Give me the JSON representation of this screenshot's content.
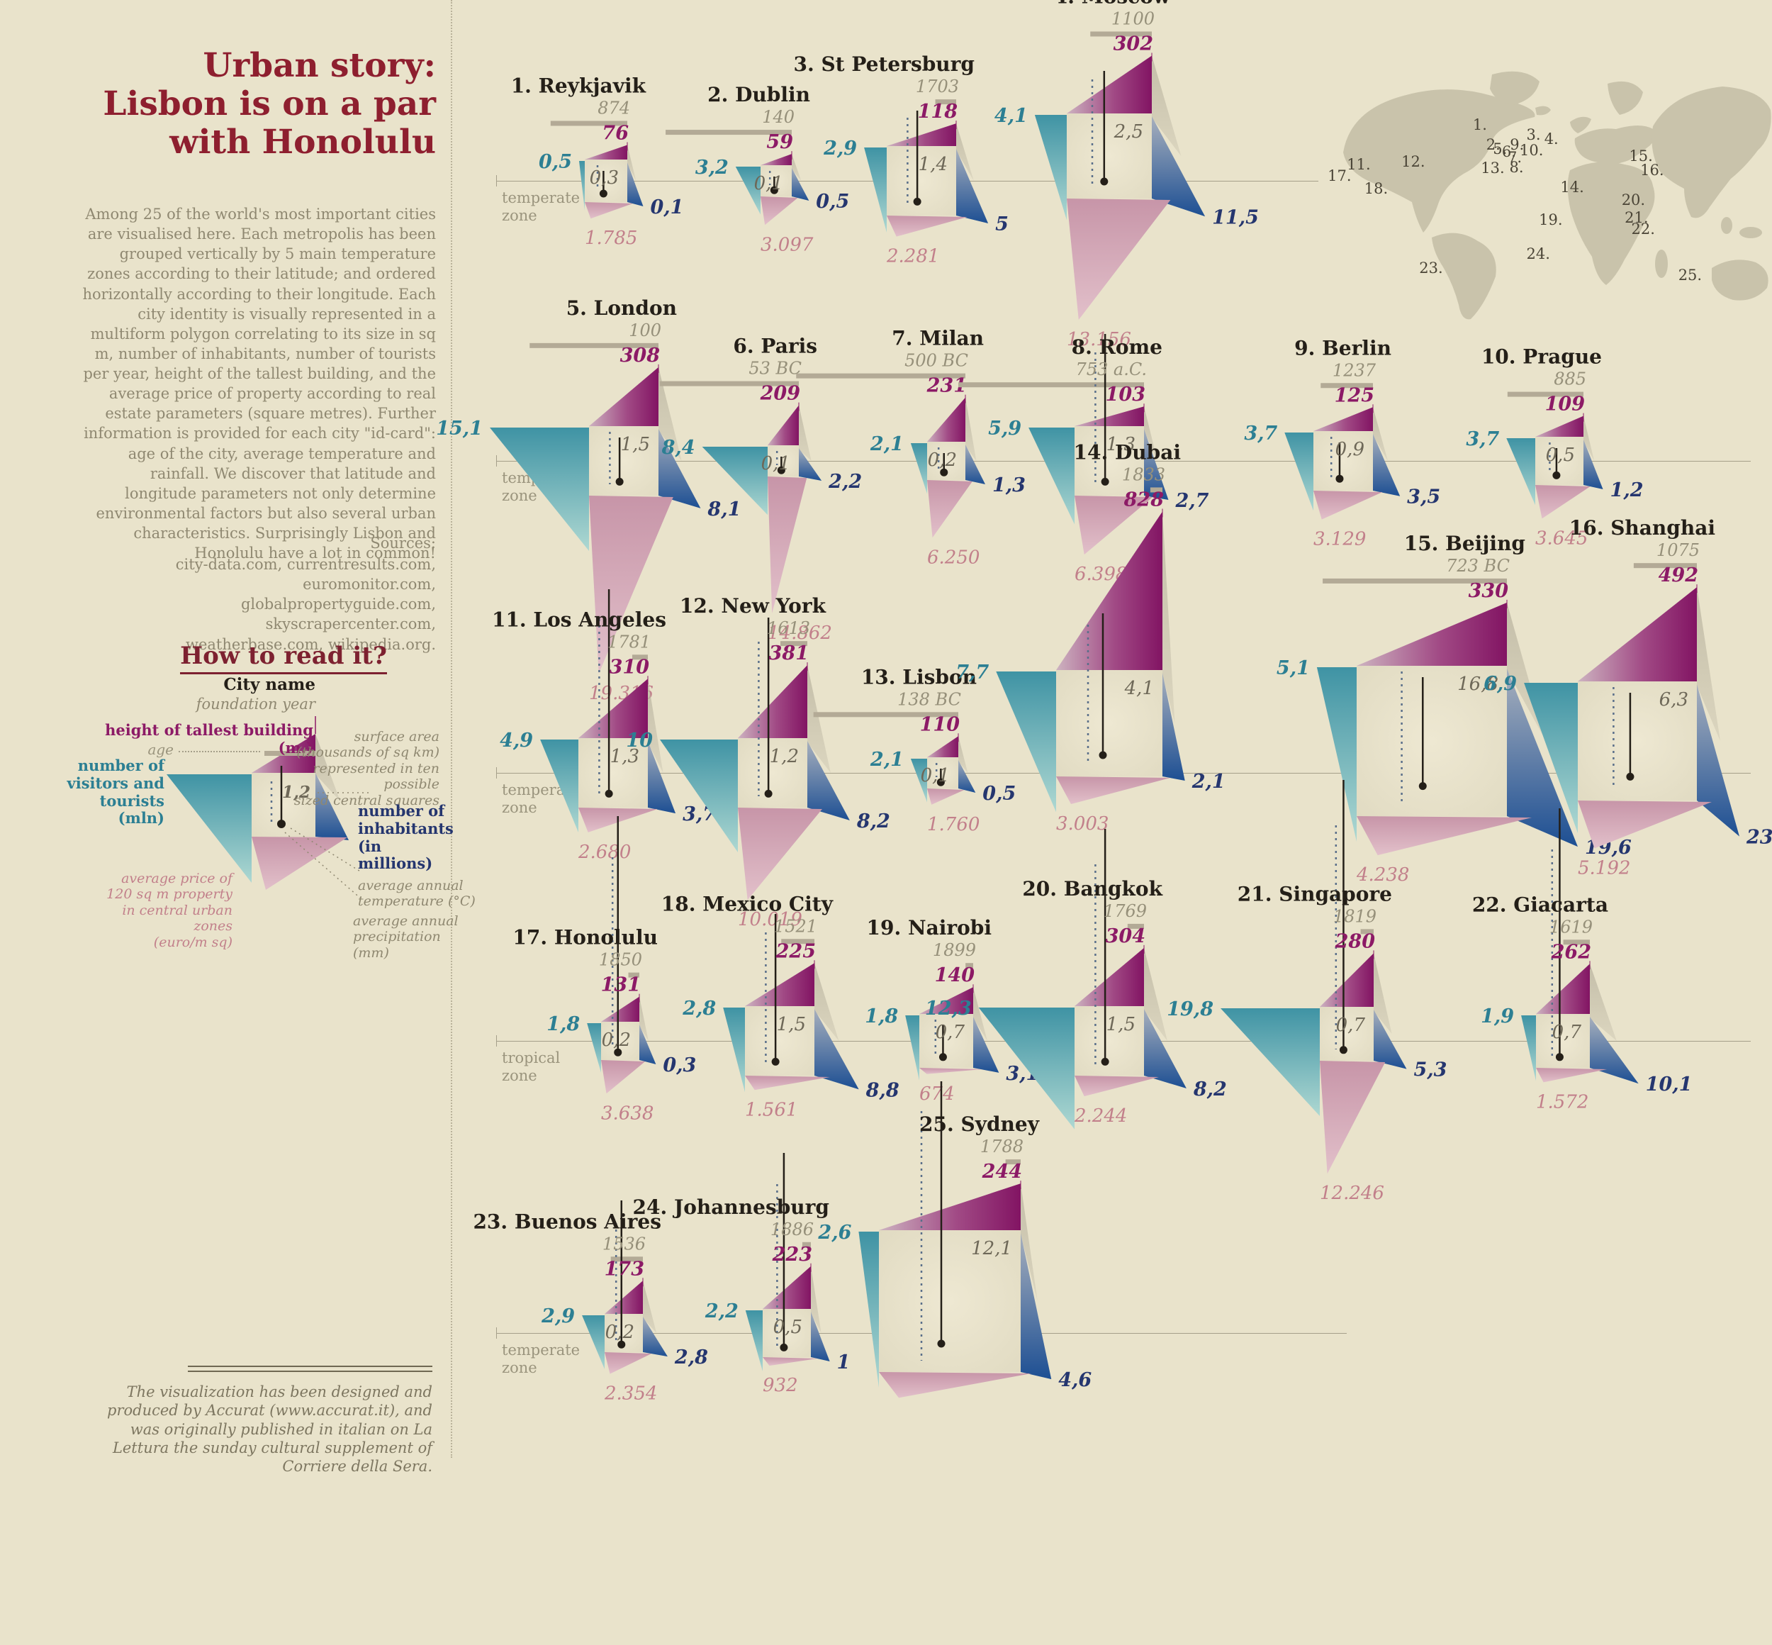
{
  "title_lines": [
    "Urban story:",
    "Lisbon is on a par",
    "with Honolulu"
  ],
  "intro": "Among 25 of the world's most important cities are visualised here. Each metropolis has been grouped vertically by 5 main temperature zones according to their latitude; and ordered horizontally according to their longitude. Each city identity is visually represented in a multiform polygon correlating to its size in sq m, number of inhabitants, number of tourists per year, height of the tallest building, and the average price of property according to real estate parameters (square metres). Further information is provided for each city \"id-card\": age of the city, average temperature and rainfall. We discover that latitude and longitude parameters not only determine environmental factors but also several urban characteristics. Surprisingly Lisbon and Honolulu have a lot in common!",
  "sources_label": "Sources:",
  "sources": "city-data.com, currentresults.com, euromonitor.com, globalpropertyguide.com, skyscrapercenter.com, weatherbase.com, wikipedia.org.",
  "how_to_read": {
    "heading": "How to read it?",
    "city_name": "City name",
    "foundation_year": "foundation year",
    "age": "age",
    "height": "height of tallest building (m.)",
    "visitors": "number of\nvisitors and\ntourists (mln)",
    "surface": "surface area\n(thousands of sq km)\nrepresented in ten possible\nsized central squares",
    "example_value": "1,2",
    "inhabitants": "number of\ninhabitants\n(in millions)",
    "temperature": "average annual\ntemperature (°C)",
    "precipitation": "average annual\nprecipitation (mm)",
    "price": "average price of\n120 sq m property\nin central urban zones\n(euro/m sq)"
  },
  "footer": "The visualization has been designed and produced by Accurat (www.accurat.it), and was originally published in italian on La Lettura the sunday cultural supplement of Corriere della Sera.",
  "zone_labels": {
    "temperate": "temperate\nzone",
    "tropical": "tropical\nzone"
  },
  "colors": {
    "background": "#e9e3cb",
    "title_red": "#8e1f2f",
    "magenta": "#8c1a66",
    "teal": "#2c7f93",
    "blue": "#25366f",
    "rose": "#c27f8a",
    "gray_text": "#8f8871",
    "age_bar": "#b3aa96",
    "map_land": "#c9c3ab"
  },
  "cities": [
    {
      "rank": "1",
      "name": "Reykjavik",
      "zone": "temperate",
      "year": "874",
      "height_m": "76",
      "visitors_mln": "0,5",
      "surface": "0,3",
      "inhabitants_mln": "0,1",
      "price_eur_sqm": "1.785"
    },
    {
      "rank": "2",
      "name": "Dublin",
      "zone": "temperate",
      "year": "140",
      "height_m": "59",
      "visitors_mln": "3,2",
      "surface": "0,1",
      "inhabitants_mln": "0,5",
      "price_eur_sqm": "3.097"
    },
    {
      "rank": "3",
      "name": "St Petersburg",
      "zone": "temperate",
      "year": "1703",
      "height_m": "118",
      "visitors_mln": "2,9",
      "surface": "1,4",
      "inhabitants_mln": "5",
      "price_eur_sqm": "2.281"
    },
    {
      "rank": "4",
      "name": "Moscow",
      "zone": "temperate",
      "year": "1100",
      "height_m": "302",
      "visitors_mln": "4,1",
      "surface": "2,5",
      "inhabitants_mln": "11,5",
      "price_eur_sqm": "13.156"
    },
    {
      "rank": "5",
      "name": "London",
      "zone": "temperate",
      "year": "100",
      "height_m": "308",
      "visitors_mln": "15,1",
      "surface": "1,5",
      "inhabitants_mln": "8,1",
      "price_eur_sqm": "19.316"
    },
    {
      "rank": "6",
      "name": "Paris",
      "zone": "temperate",
      "year": "53 BC",
      "height_m": "209",
      "visitors_mln": "8,4",
      "surface": "0,1",
      "inhabitants_mln": "2,2",
      "price_eur_sqm": "14.862"
    },
    {
      "rank": "7",
      "name": "Milan",
      "zone": "temperate",
      "year": "500 BC",
      "height_m": "231",
      "visitors_mln": "2,1",
      "surface": "0,2",
      "inhabitants_mln": "1,3",
      "price_eur_sqm": "6.250"
    },
    {
      "rank": "8",
      "name": "Rome",
      "zone": "temperate",
      "year": "753 a.C.",
      "height_m": "103",
      "visitors_mln": "5,9",
      "surface": "1,3",
      "inhabitants_mln": "2,7",
      "price_eur_sqm": "6.398"
    },
    {
      "rank": "9",
      "name": "Berlin",
      "zone": "temperate",
      "year": "1237",
      "height_m": "125",
      "visitors_mln": "3,7",
      "surface": "0,9",
      "inhabitants_mln": "3,5",
      "price_eur_sqm": "3.129"
    },
    {
      "rank": "10",
      "name": "Prague",
      "zone": "temperate",
      "year": "885",
      "height_m": "109",
      "visitors_mln": "3,7",
      "surface": "0,5",
      "inhabitants_mln": "1,2",
      "price_eur_sqm": "3.645"
    },
    {
      "rank": "11",
      "name": "Los Angeles",
      "zone": "temperate",
      "year": "1781",
      "height_m": "310",
      "visitors_mln": "4,9",
      "surface": "1,3",
      "inhabitants_mln": "3,7",
      "price_eur_sqm": "2.680"
    },
    {
      "rank": "12",
      "name": "New York",
      "zone": "temperate",
      "year": "1613",
      "height_m": "381",
      "visitors_mln": "10",
      "surface": "1,2",
      "inhabitants_mln": "8,2",
      "price_eur_sqm": "10.019"
    },
    {
      "rank": "13",
      "name": "Lisbon",
      "zone": "temperate",
      "year": "138 BC",
      "height_m": "110",
      "visitors_mln": "2,1",
      "surface": "0,1",
      "inhabitants_mln": "0,5",
      "price_eur_sqm": "1.760"
    },
    {
      "rank": "14",
      "name": "Dubai",
      "zone": "temperate",
      "year": "1833",
      "height_m": "828",
      "visitors_mln": "7,7",
      "surface": "4,1",
      "inhabitants_mln": "2,1",
      "price_eur_sqm": "3.003"
    },
    {
      "rank": "15",
      "name": "Beijing",
      "zone": "temperate",
      "year": "723 BC",
      "height_m": "330",
      "visitors_mln": "5,1",
      "surface": "16,8",
      "inhabitants_mln": "19,6",
      "price_eur_sqm": "4.238"
    },
    {
      "rank": "16",
      "name": "Shanghai",
      "zone": "temperate",
      "year": "1075",
      "height_m": "492",
      "visitors_mln": "6,9",
      "surface": "6,3",
      "inhabitants_mln": "23",
      "price_eur_sqm": "5.192"
    },
    {
      "rank": "17",
      "name": "Honolulu",
      "zone": "tropical",
      "year": "1850",
      "height_m": "131",
      "visitors_mln": "1,8",
      "surface": "0,2",
      "inhabitants_mln": "0,3",
      "price_eur_sqm": "3.638"
    },
    {
      "rank": "18",
      "name": "Mexico City",
      "zone": "tropical",
      "year": "1521",
      "height_m": "225",
      "visitors_mln": "2,8",
      "surface": "1,5",
      "inhabitants_mln": "8,8",
      "price_eur_sqm": "1.561"
    },
    {
      "rank": "19",
      "name": "Nairobi",
      "zone": "tropical",
      "year": "1899",
      "height_m": "140",
      "visitors_mln": "1,8",
      "surface": "0,7",
      "inhabitants_mln": "3,1",
      "price_eur_sqm": "674"
    },
    {
      "rank": "20",
      "name": "Bangkok",
      "zone": "tropical",
      "year": "1769",
      "height_m": "304",
      "visitors_mln": "12,3",
      "surface": "1,5",
      "inhabitants_mln": "8,2",
      "price_eur_sqm": "2.244"
    },
    {
      "rank": "21",
      "name": "Singapore",
      "zone": "tropical",
      "year": "1819",
      "height_m": "280",
      "visitors_mln": "19,8",
      "surface": "0,7",
      "inhabitants_mln": "5,3",
      "price_eur_sqm": "12.246"
    },
    {
      "rank": "22",
      "name": "Giacarta",
      "zone": "tropical",
      "year": "1619",
      "height_m": "262",
      "visitors_mln": "1,9",
      "surface": "0,7",
      "inhabitants_mln": "10,1",
      "price_eur_sqm": "1.572"
    },
    {
      "rank": "23",
      "name": "Buenos Aires",
      "zone": "temperate",
      "year": "1536",
      "height_m": "173",
      "visitors_mln": "2,9",
      "surface": "0,2",
      "inhabitants_mln": "2,8",
      "price_eur_sqm": "2.354"
    },
    {
      "rank": "24",
      "name": "Johannesburg",
      "zone": "temperate",
      "year": "1886",
      "height_m": "223",
      "visitors_mln": "2,2",
      "surface": "0,5",
      "inhabitants_mln": "1",
      "price_eur_sqm": "932"
    },
    {
      "rank": "25",
      "name": "Sydney",
      "zone": "temperate",
      "year": "1788",
      "height_m": "244",
      "visitors_mln": "2,6",
      "surface": "12,1",
      "inhabitants_mln": "4,6",
      "price_eur_sqm": ""
    }
  ],
  "map_markers": [
    {
      "label": "1.",
      "x": 33,
      "y": 26
    },
    {
      "label": "2.",
      "x": 36,
      "y": 33
    },
    {
      "label": "3.",
      "x": 45,
      "y": 29.5
    },
    {
      "label": "4.",
      "x": 49,
      "y": 31
    },
    {
      "label": "5.",
      "x": 37.5,
      "y": 34.5
    },
    {
      "label": "6.",
      "x": 39.5,
      "y": 35.5
    },
    {
      "label": "7.",
      "x": 40.8,
      "y": 37.5
    },
    {
      "label": "8.",
      "x": 41.2,
      "y": 41
    },
    {
      "label": "9.",
      "x": 41.3,
      "y": 33
    },
    {
      "label": "10.",
      "x": 43.5,
      "y": 35
    },
    {
      "label": "11.",
      "x": 4.8,
      "y": 40
    },
    {
      "label": "12.",
      "x": 17,
      "y": 39
    },
    {
      "label": "13.",
      "x": 34.8,
      "y": 41.3
    },
    {
      "label": "14.",
      "x": 52.6,
      "y": 48
    },
    {
      "label": "15.",
      "x": 68,
      "y": 37
    },
    {
      "label": "16.",
      "x": 70.5,
      "y": 42
    },
    {
      "label": "17.",
      "x": 0.5,
      "y": 44
    },
    {
      "label": "18.",
      "x": 8.7,
      "y": 48.6
    },
    {
      "label": "19.",
      "x": 47.8,
      "y": 59.6
    },
    {
      "label": "20.",
      "x": 66.3,
      "y": 52.4
    },
    {
      "label": "21.",
      "x": 67,
      "y": 58.8
    },
    {
      "label": "22.",
      "x": 68.5,
      "y": 62.8
    },
    {
      "label": "23.",
      "x": 21,
      "y": 76.4
    },
    {
      "label": "24.",
      "x": 45,
      "y": 71.5
    },
    {
      "label": "25.",
      "x": 79,
      "y": 78.9
    }
  ],
  "chart_data": {
    "type": "table",
    "title": "Urban story: Lisbon is on a par with Honolulu",
    "columns": [
      "rank",
      "city",
      "temperature_zone",
      "foundation_year",
      "tallest_building_m",
      "visitors_and_tourists_mln",
      "surface_area_thousands_sqkm",
      "inhabitants_mln",
      "avg_price_eur_per_sqm"
    ],
    "rows": [
      [
        "1",
        "Reykjavik",
        "temperate",
        "874",
        76,
        0.5,
        0.3,
        0.1,
        1785
      ],
      [
        "2",
        "Dublin",
        "temperate",
        "140",
        59,
        3.2,
        0.1,
        0.5,
        3097
      ],
      [
        "3",
        "St Petersburg",
        "temperate",
        "1703",
        118,
        2.9,
        1.4,
        5,
        2281
      ],
      [
        "4",
        "Moscow",
        "temperate",
        "1100",
        302,
        4.1,
        2.5,
        11.5,
        13156
      ],
      [
        "5",
        "London",
        "temperate",
        "100",
        308,
        15.1,
        1.5,
        8.1,
        19316
      ],
      [
        "6",
        "Paris",
        "temperate",
        "53 BC",
        209,
        8.4,
        0.1,
        2.2,
        14862
      ],
      [
        "7",
        "Milan",
        "temperate",
        "500 BC",
        231,
        2.1,
        0.2,
        1.3,
        6250
      ],
      [
        "8",
        "Rome",
        "temperate",
        "753 a.C.",
        103,
        5.9,
        1.3,
        2.7,
        6398
      ],
      [
        "9",
        "Berlin",
        "temperate",
        "1237",
        125,
        3.7,
        0.9,
        3.5,
        3129
      ],
      [
        "10",
        "Prague",
        "temperate",
        "885",
        109,
        3.7,
        0.5,
        1.2,
        3645
      ],
      [
        "11",
        "Los Angeles",
        "temperate",
        "1781",
        310,
        4.9,
        1.3,
        3.7,
        2680
      ],
      [
        "12",
        "New York",
        "temperate",
        "1613",
        381,
        10,
        1.2,
        8.2,
        10019
      ],
      [
        "13",
        "Lisbon",
        "temperate",
        "138 BC",
        110,
        2.1,
        0.1,
        0.5,
        1760
      ],
      [
        "14",
        "Dubai",
        "temperate",
        "1833",
        828,
        7.7,
        4.1,
        2.1,
        3003
      ],
      [
        "15",
        "Beijing",
        "temperate",
        "723 BC",
        330,
        5.1,
        16.8,
        19.6,
        4238
      ],
      [
        "16",
        "Shanghai",
        "temperate",
        "1075",
        492,
        6.9,
        6.3,
        23,
        5192
      ],
      [
        "17",
        "Honolulu",
        "tropical",
        "1850",
        131,
        1.8,
        0.2,
        0.3,
        3638
      ],
      [
        "18",
        "Mexico City",
        "tropical",
        "1521",
        225,
        2.8,
        1.5,
        8.8,
        1561
      ],
      [
        "19",
        "Nairobi",
        "tropical",
        "1899",
        140,
        1.8,
        0.7,
        3.1,
        674
      ],
      [
        "20",
        "Bangkok",
        "tropical",
        "1769",
        304,
        12.3,
        1.5,
        8.2,
        2244
      ],
      [
        "21",
        "Singapore",
        "tropical",
        "1819",
        280,
        19.8,
        0.7,
        5.3,
        12246
      ],
      [
        "22",
        "Giacarta",
        "tropical",
        "1619",
        262,
        1.9,
        0.7,
        10.1,
        1572
      ],
      [
        "23",
        "Buenos Aires",
        "temperate",
        "1536",
        173,
        2.9,
        0.2,
        2.8,
        2354
      ],
      [
        "24",
        "Johannesburg",
        "temperate",
        "1886",
        223,
        2.2,
        0.5,
        1,
        932
      ],
      [
        "25",
        "Sydney",
        "temperate",
        "1788",
        244,
        2.6,
        12.1,
        4.6,
        null
      ]
    ]
  }
}
